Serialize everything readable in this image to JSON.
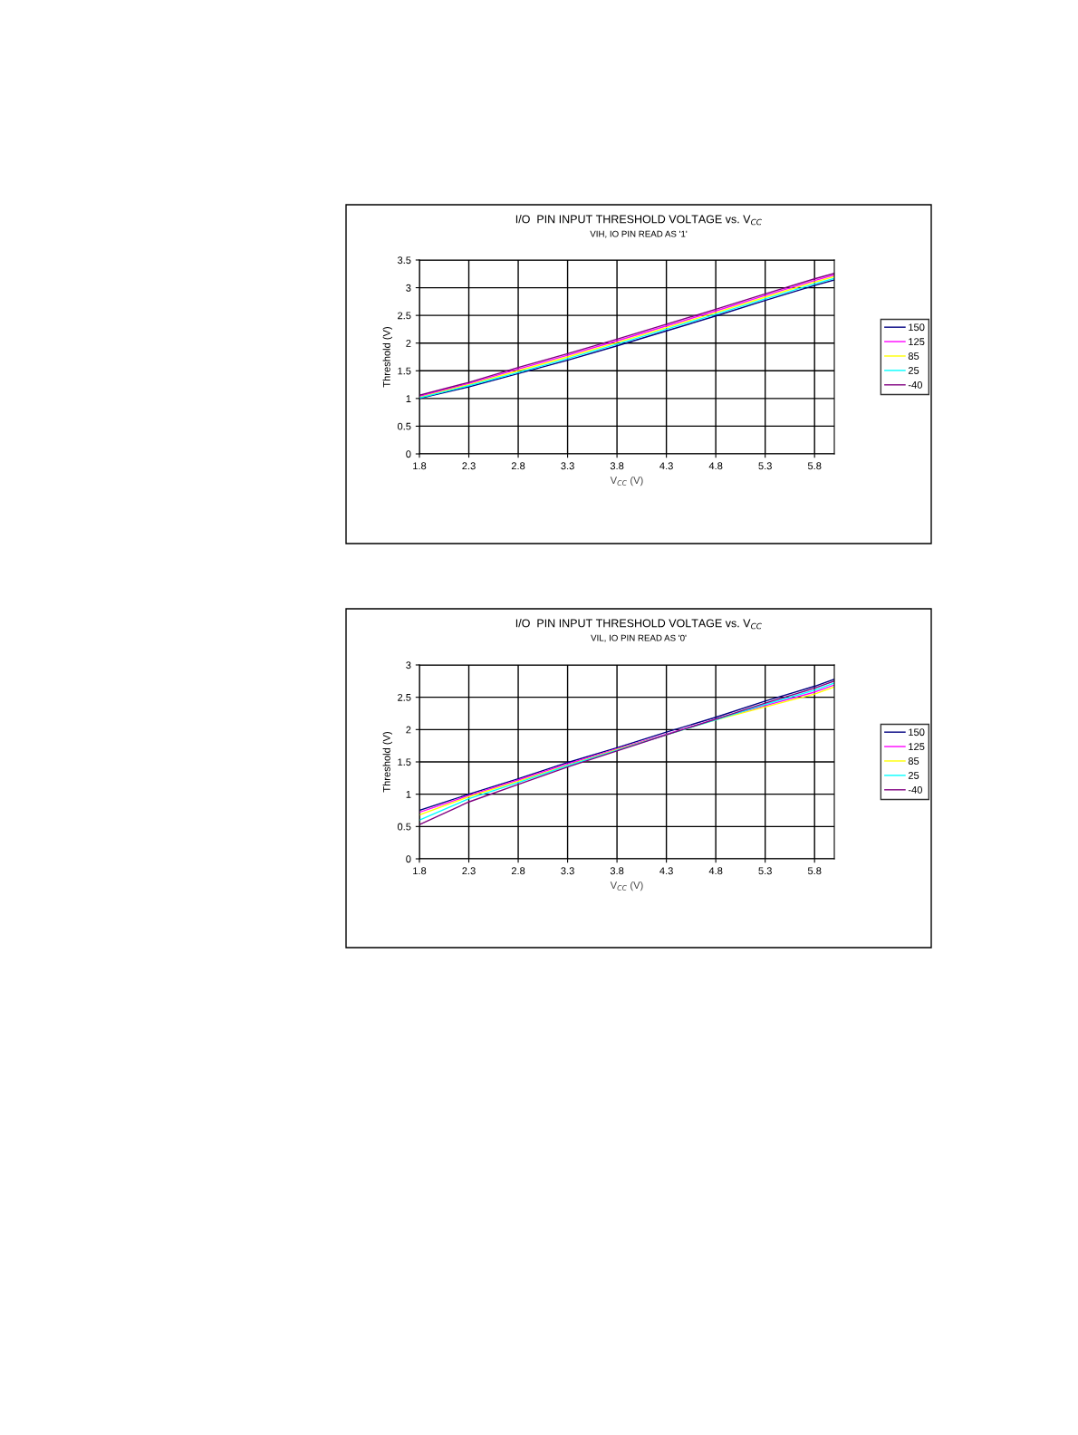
{
  "chart_data": [
    {
      "type": "line",
      "title": "I/O  PIN INPUT THRESHOLD VOLTAGE vs. V$_{CC}$",
      "subtitle": "VIH, IO PIN READ AS '1'",
      "xlabel": "V$_{CC}$ (V)",
      "ylabel": "Threshold (V)",
      "x": [
        1.8,
        2.3,
        2.8,
        3.3,
        3.8,
        4.3,
        4.8,
        5.3,
        5.8,
        6.0
      ],
      "series": [
        {
          "name": "150",
          "color": "#000080",
          "values": [
            1.0,
            1.21,
            1.45,
            1.69,
            1.95,
            2.22,
            2.49,
            2.77,
            3.04,
            3.14
          ]
        },
        {
          "name": "125",
          "color": "#ff00ff",
          "values": [
            1.04,
            1.27,
            1.53,
            1.78,
            2.04,
            2.31,
            2.58,
            2.86,
            3.13,
            3.23
          ]
        },
        {
          "name": "85",
          "color": "#ffff00",
          "values": [
            1.02,
            1.25,
            1.5,
            1.75,
            2.01,
            2.28,
            2.55,
            2.83,
            3.1,
            3.2
          ]
        },
        {
          "name": "25",
          "color": "#00ffff",
          "values": [
            1.01,
            1.23,
            1.47,
            1.72,
            1.98,
            2.25,
            2.52,
            2.8,
            3.07,
            3.17
          ]
        },
        {
          "name": "-40",
          "color": "#800080",
          "values": [
            1.06,
            1.29,
            1.56,
            1.81,
            2.07,
            2.34,
            2.61,
            2.89,
            3.16,
            3.26
          ]
        }
      ],
      "xlim": [
        1.8,
        6.0
      ],
      "xticks": [
        1.8,
        2.3,
        2.8,
        3.3,
        3.8,
        4.3,
        4.8,
        5.3,
        5.8
      ],
      "ylim": [
        0,
        3.5
      ],
      "yticks": [
        0,
        0.5,
        1,
        1.5,
        2,
        2.5,
        3,
        3.5
      ],
      "grid": true,
      "legend": "right",
      "marker": "none",
      "line_style": "solid"
    },
    {
      "type": "line",
      "title": "I/O  PIN INPUT THRESHOLD VOLTAGE vs. V$_{CC}$",
      "subtitle": "VIL, IO PIN READ AS '0'",
      "xlabel": "V$_{CC}$ (V)",
      "ylabel": "Threshold (V)",
      "x": [
        1.8,
        2.3,
        2.8,
        3.3,
        3.8,
        4.3,
        4.8,
        5.3,
        5.8,
        6.0
      ],
      "series": [
        {
          "name": "150",
          "color": "#000080",
          "values": [
            0.75,
            1.0,
            1.24,
            1.49,
            1.72,
            1.96,
            2.19,
            2.44,
            2.67,
            2.78
          ]
        },
        {
          "name": "125",
          "color": "#ff00ff",
          "values": [
            0.72,
            0.98,
            1.22,
            1.47,
            1.7,
            1.93,
            2.16,
            2.37,
            2.58,
            2.69
          ]
        },
        {
          "name": "85",
          "color": "#ffff00",
          "values": [
            0.68,
            0.96,
            1.2,
            1.45,
            1.69,
            1.92,
            2.15,
            2.35,
            2.55,
            2.66
          ]
        },
        {
          "name": "25",
          "color": "#00ffff",
          "values": [
            0.6,
            0.93,
            1.18,
            1.44,
            1.68,
            1.92,
            2.15,
            2.39,
            2.61,
            2.72
          ]
        },
        {
          "name": "-40",
          "color": "#800080",
          "values": [
            0.53,
            0.88,
            1.15,
            1.42,
            1.67,
            1.92,
            2.16,
            2.41,
            2.64,
            2.75
          ]
        }
      ],
      "xlim": [
        1.8,
        6.0
      ],
      "xticks": [
        1.8,
        2.3,
        2.8,
        3.3,
        3.8,
        4.3,
        4.8,
        5.3,
        5.8
      ],
      "ylim": [
        0,
        3
      ],
      "yticks": [
        0,
        0.5,
        1,
        1.5,
        2,
        2.5,
        3
      ],
      "grid": true,
      "legend": "right",
      "marker": "none",
      "line_style": "solid"
    }
  ]
}
